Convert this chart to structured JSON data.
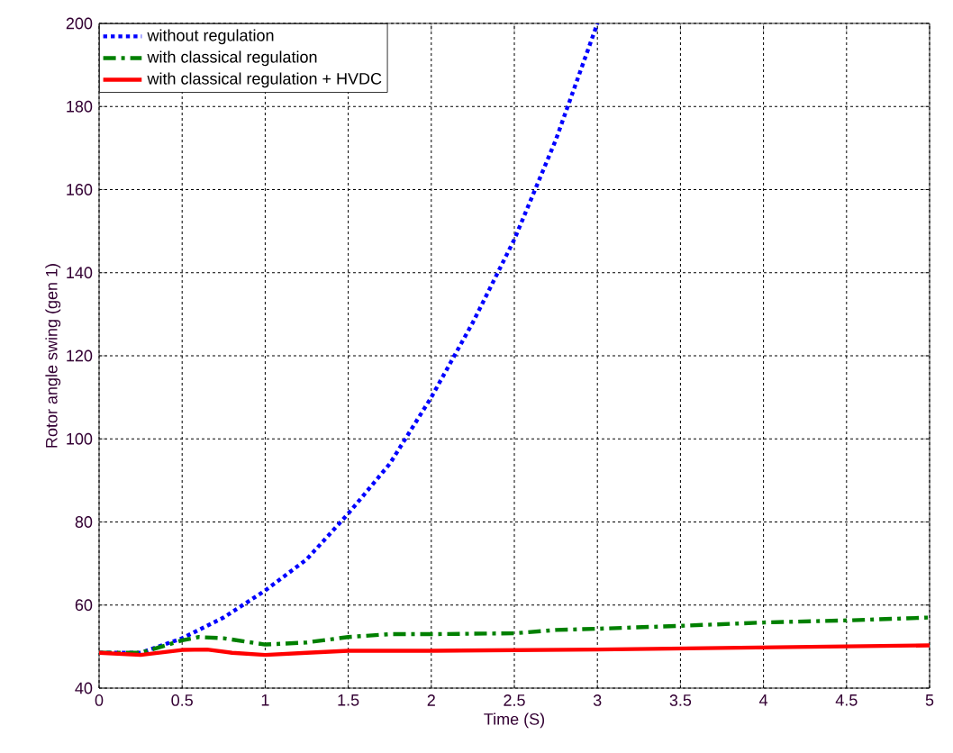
{
  "chart_data": {
    "type": "line",
    "xlabel": "Time (S)",
    "ylabel": "Rotor angle swing (gen 1)",
    "xlim": [
      0,
      5
    ],
    "ylim": [
      40,
      200
    ],
    "xticks": [
      0,
      0.5,
      1,
      1.5,
      2,
      2.5,
      3,
      3.5,
      4,
      4.5,
      5
    ],
    "yticks": [
      40,
      60,
      80,
      100,
      120,
      140,
      160,
      180,
      200
    ],
    "grid": true,
    "legend": "top left",
    "series": [
      {
        "name": "without regulation",
        "color": "#0000ff",
        "line_style": "dotted",
        "x": [
          0,
          0.25,
          0.5,
          0.75,
          1,
          1.25,
          1.5,
          1.75,
          2,
          2.25,
          2.5,
          2.75,
          3
        ],
        "values": [
          48.5,
          48.5,
          52,
          57,
          63.5,
          71,
          82,
          94,
          110,
          128,
          148,
          172,
          200
        ]
      },
      {
        "name": "with classical regulation",
        "color": "#008000",
        "line_style": "dashdot",
        "x": [
          0,
          0.25,
          0.5,
          0.6,
          0.75,
          1,
          1.25,
          1.5,
          1.75,
          2,
          2.5,
          2.75,
          3,
          3.5,
          4,
          4.5,
          5
        ],
        "values": [
          48.5,
          48.5,
          51.5,
          52.3,
          52,
          50.5,
          51,
          52.3,
          53,
          53,
          53.2,
          54,
          54.3,
          55,
          55.8,
          56.3,
          57
        ]
      },
      {
        "name": "with classical regulation + HVDC",
        "color": "#ff0000",
        "line_style": "solid",
        "x": [
          0,
          0.25,
          0.5,
          0.65,
          0.8,
          1,
          1.25,
          1.5,
          2,
          3,
          4,
          5
        ],
        "values": [
          48.5,
          48,
          49.2,
          49.3,
          48.5,
          48,
          48.5,
          49,
          49,
          49.3,
          49.8,
          50.3
        ]
      }
    ]
  }
}
